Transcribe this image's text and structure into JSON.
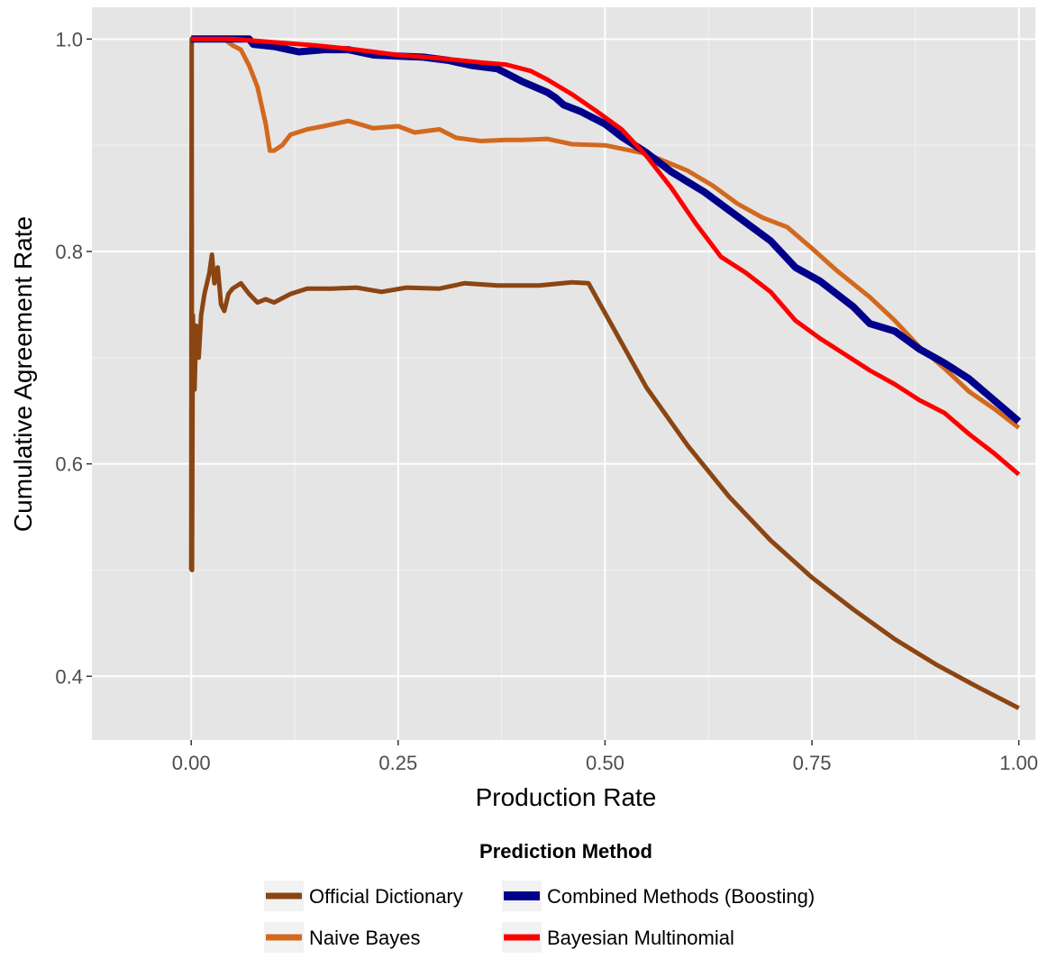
{
  "chart_data": {
    "type": "line",
    "title": "",
    "xlabel": "Production Rate",
    "ylabel": "Cumulative Agreement Rate",
    "xlim": [
      -0.12,
      1.02
    ],
    "ylim": [
      0.34,
      1.03
    ],
    "x_ticks": [
      "0.00",
      "0.25",
      "0.50",
      "0.75",
      "1.00"
    ],
    "x_tick_values": [
      0,
      0.25,
      0.5,
      0.75,
      1.0
    ],
    "y_ticks": [
      "0.4",
      "0.6",
      "0.8",
      "1.0"
    ],
    "y_tick_values": [
      0.4,
      0.6,
      0.8,
      1.0
    ],
    "grid": true,
    "legend": {
      "title": "Prediction Method",
      "position": "bottom",
      "entries": [
        "Official Dictionary",
        "Combined Methods (Boosting)",
        "Naive Bayes",
        "Bayesian Multinomial"
      ]
    },
    "series": [
      {
        "name": "Official Dictionary",
        "color": "#8b4513",
        "width": 5,
        "points": [
          [
            0.0,
            0.5
          ],
          [
            0.0005,
            1.0
          ],
          [
            0.001,
            0.5
          ],
          [
            0.002,
            0.74
          ],
          [
            0.004,
            0.67
          ],
          [
            0.006,
            0.73
          ],
          [
            0.009,
            0.7
          ],
          [
            0.012,
            0.74
          ],
          [
            0.016,
            0.76
          ],
          [
            0.022,
            0.78
          ],
          [
            0.025,
            0.797
          ],
          [
            0.028,
            0.77
          ],
          [
            0.032,
            0.785
          ],
          [
            0.036,
            0.75
          ],
          [
            0.04,
            0.744
          ],
          [
            0.045,
            0.76
          ],
          [
            0.05,
            0.765
          ],
          [
            0.06,
            0.77
          ],
          [
            0.07,
            0.76
          ],
          [
            0.08,
            0.752
          ],
          [
            0.09,
            0.755
          ],
          [
            0.1,
            0.752
          ],
          [
            0.12,
            0.76
          ],
          [
            0.14,
            0.765
          ],
          [
            0.17,
            0.765
          ],
          [
            0.2,
            0.766
          ],
          [
            0.23,
            0.762
          ],
          [
            0.26,
            0.766
          ],
          [
            0.3,
            0.765
          ],
          [
            0.33,
            0.77
          ],
          [
            0.37,
            0.768
          ],
          [
            0.42,
            0.768
          ],
          [
            0.46,
            0.771
          ],
          [
            0.48,
            0.77
          ],
          [
            0.5,
            0.742
          ],
          [
            0.55,
            0.672
          ],
          [
            0.6,
            0.617
          ],
          [
            0.65,
            0.569
          ],
          [
            0.7,
            0.528
          ],
          [
            0.75,
            0.493
          ],
          [
            0.8,
            0.463
          ],
          [
            0.85,
            0.435
          ],
          [
            0.9,
            0.411
          ],
          [
            0.95,
            0.39
          ],
          [
            1.0,
            0.37
          ]
        ]
      },
      {
        "name": "Naive Bayes",
        "color": "#d2691e",
        "width": 5,
        "points": [
          [
            0.04,
            1.0
          ],
          [
            0.05,
            0.994
          ],
          [
            0.06,
            0.99
          ],
          [
            0.07,
            0.975
          ],
          [
            0.08,
            0.955
          ],
          [
            0.09,
            0.92
          ],
          [
            0.095,
            0.895
          ],
          [
            0.1,
            0.895
          ],
          [
            0.11,
            0.9
          ],
          [
            0.12,
            0.91
          ],
          [
            0.14,
            0.915
          ],
          [
            0.16,
            0.918
          ],
          [
            0.19,
            0.923
          ],
          [
            0.22,
            0.916
          ],
          [
            0.25,
            0.918
          ],
          [
            0.27,
            0.912
          ],
          [
            0.3,
            0.915
          ],
          [
            0.32,
            0.907
          ],
          [
            0.35,
            0.904
          ],
          [
            0.38,
            0.905
          ],
          [
            0.4,
            0.905
          ],
          [
            0.43,
            0.906
          ],
          [
            0.46,
            0.901
          ],
          [
            0.5,
            0.9
          ],
          [
            0.55,
            0.892
          ],
          [
            0.6,
            0.876
          ],
          [
            0.63,
            0.862
          ],
          [
            0.66,
            0.845
          ],
          [
            0.69,
            0.832
          ],
          [
            0.72,
            0.823
          ],
          [
            0.75,
            0.803
          ],
          [
            0.78,
            0.782
          ],
          [
            0.82,
            0.757
          ],
          [
            0.85,
            0.735
          ],
          [
            0.88,
            0.71
          ],
          [
            0.91,
            0.69
          ],
          [
            0.94,
            0.668
          ],
          [
            0.97,
            0.652
          ],
          [
            1.0,
            0.634
          ]
        ]
      },
      {
        "name": "Combined Methods (Boosting)",
        "color": "#00008b",
        "width": 8,
        "points": [
          [
            0.0,
            1.0
          ],
          [
            0.03,
            1.0
          ],
          [
            0.07,
            1.0
          ],
          [
            0.075,
            0.995
          ],
          [
            0.1,
            0.993
          ],
          [
            0.13,
            0.988
          ],
          [
            0.16,
            0.99
          ],
          [
            0.19,
            0.99
          ],
          [
            0.22,
            0.985
          ],
          [
            0.25,
            0.984
          ],
          [
            0.28,
            0.983
          ],
          [
            0.31,
            0.98
          ],
          [
            0.34,
            0.975
          ],
          [
            0.37,
            0.972
          ],
          [
            0.4,
            0.96
          ],
          [
            0.43,
            0.95
          ],
          [
            0.44,
            0.945
          ],
          [
            0.45,
            0.938
          ],
          [
            0.47,
            0.932
          ],
          [
            0.5,
            0.92
          ],
          [
            0.52,
            0.908
          ],
          [
            0.55,
            0.893
          ],
          [
            0.58,
            0.875
          ],
          [
            0.62,
            0.856
          ],
          [
            0.66,
            0.833
          ],
          [
            0.7,
            0.81
          ],
          [
            0.73,
            0.785
          ],
          [
            0.76,
            0.772
          ],
          [
            0.8,
            0.748
          ],
          [
            0.82,
            0.732
          ],
          [
            0.85,
            0.725
          ],
          [
            0.88,
            0.708
          ],
          [
            0.91,
            0.695
          ],
          [
            0.94,
            0.68
          ],
          [
            0.97,
            0.66
          ],
          [
            1.0,
            0.64
          ]
        ]
      },
      {
        "name": "Bayesian Multinomial",
        "color": "#ff0000",
        "width": 5,
        "points": [
          [
            0.0,
            1.0
          ],
          [
            0.05,
            1.0
          ],
          [
            0.1,
            0.997
          ],
          [
            0.15,
            0.994
          ],
          [
            0.2,
            0.99
          ],
          [
            0.25,
            0.985
          ],
          [
            0.3,
            0.982
          ],
          [
            0.35,
            0.978
          ],
          [
            0.38,
            0.976
          ],
          [
            0.41,
            0.97
          ],
          [
            0.43,
            0.962
          ],
          [
            0.46,
            0.948
          ],
          [
            0.49,
            0.932
          ],
          [
            0.52,
            0.915
          ],
          [
            0.55,
            0.89
          ],
          [
            0.58,
            0.86
          ],
          [
            0.61,
            0.826
          ],
          [
            0.64,
            0.795
          ],
          [
            0.67,
            0.78
          ],
          [
            0.7,
            0.762
          ],
          [
            0.73,
            0.735
          ],
          [
            0.76,
            0.718
          ],
          [
            0.79,
            0.703
          ],
          [
            0.82,
            0.688
          ],
          [
            0.85,
            0.675
          ],
          [
            0.88,
            0.66
          ],
          [
            0.91,
            0.648
          ],
          [
            0.94,
            0.628
          ],
          [
            0.97,
            0.61
          ],
          [
            1.0,
            0.59
          ]
        ]
      }
    ]
  }
}
